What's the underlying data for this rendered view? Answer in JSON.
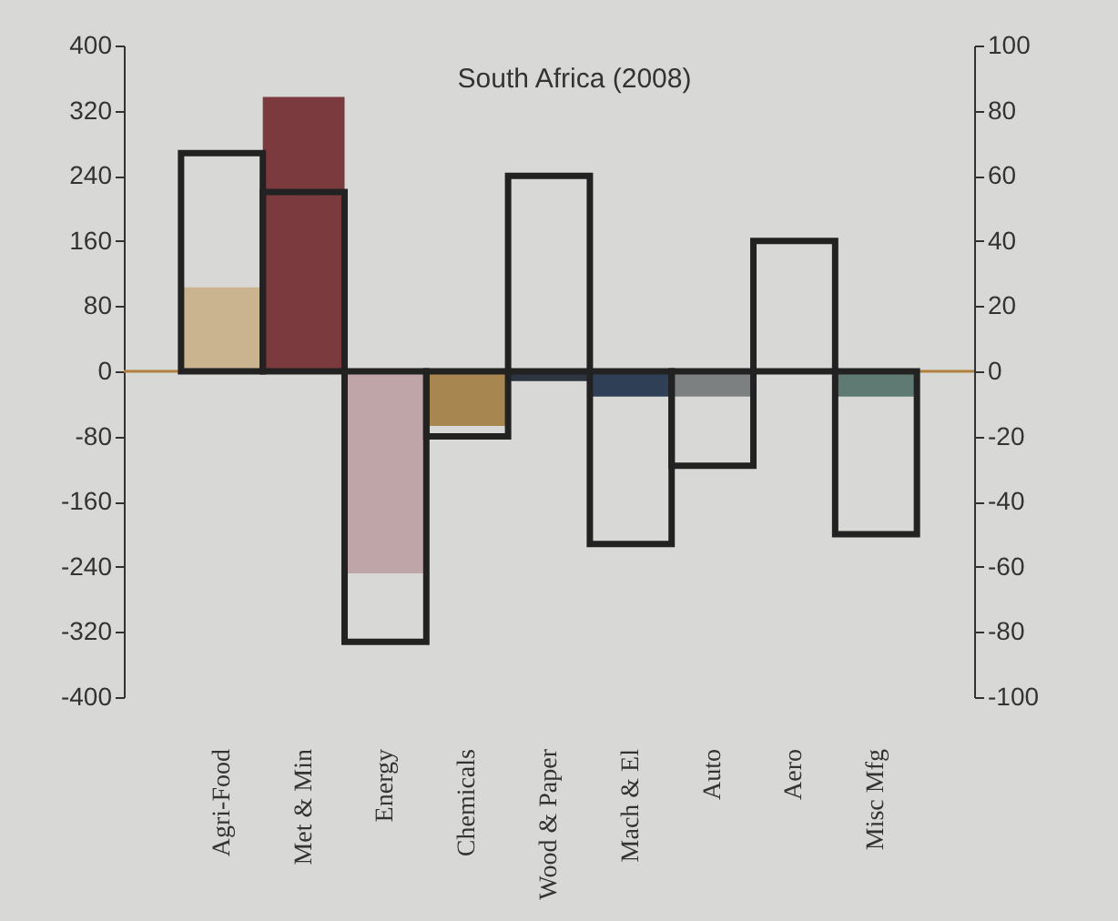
{
  "chart_data": {
    "type": "bar",
    "title": "South Africa (2008)",
    "categories": [
      "Agri-Food",
      "Met & Min",
      "Energy",
      "Chemicals",
      "Wood & Paper",
      "Mach & El",
      "Auto",
      "Aero",
      "Misc Mfg"
    ],
    "series": [
      {
        "axis": "y",
        "colors": [
          "#c9b48f",
          "#7b3a3e",
          "#bfa5a8",
          "#a88650",
          "#2c3540",
          "#2f3f55",
          "#7d8080",
          "#3a3f45",
          "#5f7a72"
        ],
        "values": [
          103,
          337,
          -248,
          -67,
          -12,
          -31,
          -31,
          null,
          -31
        ]
      },
      {
        "axis": "y2",
        "color": "#222222",
        "values": [
          67,
          55,
          -83,
          -20,
          60,
          -53,
          -29,
          40,
          -50
        ]
      }
    ],
    "ylim": [
      -400,
      400
    ],
    "yticks": [
      -400,
      -320,
      -240,
      -160,
      -80,
      0,
      80,
      160,
      240,
      320,
      400
    ],
    "y2lim": [
      -100,
      100
    ],
    "y2ticks": [
      -100,
      -80,
      -60,
      -40,
      -20,
      0,
      20,
      40,
      60,
      80,
      100
    ],
    "ref_lines": [
      {
        "axis": "y",
        "value": 0,
        "color": "#b0803c"
      }
    ],
    "grid": false
  }
}
